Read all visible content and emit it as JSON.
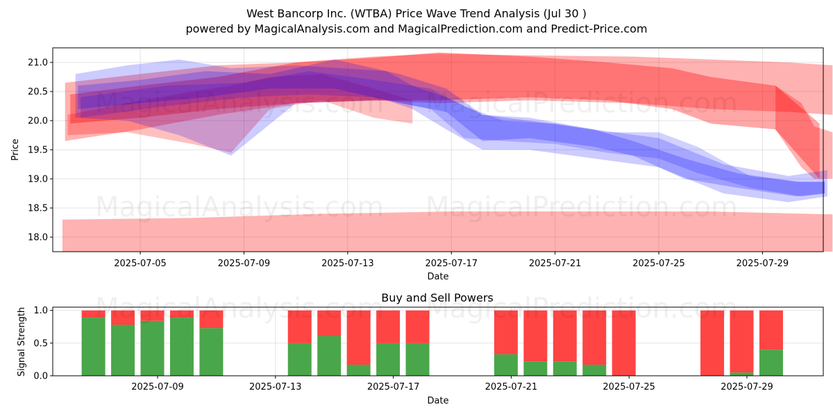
{
  "figure": {
    "title_line1": "West Bancorp Inc. (WTBA) Price Wave Trend Analysis (Jul 30 )",
    "title_line2": "powered by MagicalAnalysis.com and MagicalPrediction.com and Predict-Price.com",
    "watermark_1": "MagicalAnalysis.com",
    "watermark_2": "MagicalPrediction.com"
  },
  "colors": {
    "red_band": "#ff0000",
    "blue_band": "#0000ff",
    "buy": "#4aa64a",
    "sell": "#ff4444",
    "grid": "#b0b0b0"
  },
  "chart_data": [
    {
      "type": "area",
      "title": "",
      "xlabel": "Date",
      "ylabel": "Price",
      "x_start": "2025-07-02",
      "x_end": "2025-07-31",
      "ylim": [
        17.75,
        21.25
      ],
      "yticks": [
        18.0,
        18.5,
        19.0,
        19.5,
        20.0,
        20.5,
        21.0
      ],
      "ytick_labels": [
        "18.0",
        "18.5",
        "19.0",
        "19.5",
        "20.0",
        "20.5",
        "21.0"
      ],
      "xticks": [
        "2025-07-05",
        "2025-07-09",
        "2025-07-13",
        "2025-07-17",
        "2025-07-21",
        "2025-07-25",
        "2025-07-29"
      ],
      "series": [
        {
          "name": "red-wave-upper",
          "color": "red",
          "opacity": 0.3,
          "x_days": [
            0.1,
            3,
            6,
            9,
            12,
            14.5,
            18,
            22,
            25,
            28,
            29.7
          ],
          "upper": [
            20.65,
            20.8,
            20.95,
            21.0,
            21.1,
            21.15,
            21.12,
            21.1,
            21.05,
            21.0,
            20.95
          ],
          "lower": [
            19.65,
            19.85,
            20.1,
            20.3,
            20.35,
            20.3,
            20.35,
            20.3,
            20.2,
            20.15,
            20.1
          ]
        },
        {
          "name": "red-wave-main",
          "color": "red",
          "opacity": 0.35,
          "x_days": [
            0.3,
            3,
            6,
            9,
            12,
            14.5,
            18,
            21,
            23.5,
            25,
            27.5,
            29.2
          ],
          "upper": [
            20.45,
            20.6,
            20.75,
            21.0,
            21.08,
            21.17,
            21.1,
            21.0,
            20.9,
            20.75,
            20.6,
            19.95
          ],
          "lower": [
            19.95,
            20.05,
            20.2,
            20.3,
            20.35,
            20.35,
            20.4,
            20.35,
            20.2,
            19.95,
            19.85,
            19.0
          ]
        },
        {
          "name": "red-wave-tail",
          "color": "red",
          "opacity": 0.3,
          "x_days": [
            27.5,
            28.5,
            29.0,
            29.7
          ],
          "upper": [
            20.6,
            20.3,
            19.9,
            19.8
          ],
          "lower": [
            19.85,
            19.2,
            19.0,
            19.0
          ]
        },
        {
          "name": "red-wave-short",
          "color": "red",
          "opacity": 0.25,
          "x_days": [
            0.2,
            2.5,
            5,
            6.5,
            8,
            10,
            12,
            13.5
          ],
          "upper": [
            20.1,
            20.3,
            20.5,
            20.6,
            20.75,
            20.8,
            20.55,
            20.35
          ],
          "lower": [
            19.75,
            19.8,
            19.6,
            19.45,
            20.2,
            20.35,
            20.05,
            19.95
          ]
        },
        {
          "name": "red-support",
          "color": "red",
          "opacity": 0.3,
          "x_days": [
            0.0,
            5,
            10,
            15,
            20,
            25,
            29.7
          ],
          "upper": [
            18.3,
            18.33,
            18.4,
            18.44,
            18.44,
            18.44,
            18.39
          ],
          "lower": [
            17.75,
            17.75,
            17.75,
            17.75,
            17.75,
            17.75,
            17.75
          ]
        },
        {
          "name": "blue-wave-1",
          "color": "blue",
          "opacity": 0.2,
          "x_days": [
            0.5,
            2.5,
            4.5,
            6.5,
            9,
            12.5,
            13.5,
            14.8,
            16.2,
            18,
            20.5,
            23,
            25.5,
            28,
            29.5
          ],
          "upper": [
            20.8,
            20.95,
            21.05,
            20.9,
            20.95,
            20.85,
            20.6,
            20.4,
            20.1,
            20.05,
            19.85,
            19.7,
            19.25,
            19.05,
            19.15
          ],
          "lower": [
            20.05,
            20.0,
            19.75,
            19.4,
            20.3,
            20.35,
            20.2,
            19.85,
            19.5,
            19.5,
            19.35,
            19.2,
            18.75,
            18.6,
            18.7
          ]
        },
        {
          "name": "blue-wave-2",
          "color": "blue",
          "opacity": 0.22,
          "x_days": [
            0.6,
            3,
            5.5,
            8,
            10.5,
            13,
            14.8,
            16.2,
            18,
            20.5,
            22,
            24,
            26,
            28.3,
            29.4
          ],
          "upper": [
            20.6,
            20.7,
            20.85,
            20.8,
            21.05,
            20.8,
            20.55,
            20.1,
            20.0,
            19.85,
            19.65,
            19.35,
            19.1,
            18.95,
            18.95
          ],
          "lower": [
            20.2,
            20.3,
            20.4,
            20.55,
            20.55,
            20.3,
            20.15,
            19.65,
            19.7,
            19.55,
            19.4,
            19.0,
            18.85,
            18.7,
            18.75
          ]
        },
        {
          "name": "blue-wave-3",
          "color": "blue",
          "opacity": 0.18,
          "x_days": [
            0.7,
            4,
            7,
            9.5,
            12,
            14.2,
            15.5,
            17,
            19,
            21,
            23,
            24.5,
            26.5,
            28.5,
            29.4
          ],
          "upper": [
            20.4,
            20.6,
            20.65,
            20.85,
            20.7,
            20.55,
            20.25,
            20.0,
            19.95,
            19.8,
            19.8,
            19.55,
            19.05,
            18.95,
            18.95
          ],
          "lower": [
            20.05,
            20.25,
            20.4,
            20.45,
            20.4,
            20.2,
            19.7,
            19.65,
            19.6,
            19.45,
            19.35,
            19.1,
            18.85,
            18.7,
            18.75
          ]
        }
      ]
    },
    {
      "type": "bar",
      "title": "Buy and Sell Powers",
      "xlabel": "Date",
      "ylabel": "Signal Strength",
      "ylim": [
        0,
        1.05
      ],
      "yticks": [
        0.0,
        0.5,
        1.0
      ],
      "ytick_labels": [
        "0.0",
        "0.5",
        "1.0"
      ],
      "xticks": [
        "2025-07-09",
        "2025-07-13",
        "2025-07-17",
        "2025-07-21",
        "2025-07-25",
        "2025-07-29"
      ],
      "x_start": "2025-07-05.35",
      "categories": [
        "2025-07-07",
        "2025-07-08",
        "2025-07-09",
        "2025-07-10",
        "2025-07-11",
        "2025-07-14",
        "2025-07-15",
        "2025-07-16",
        "2025-07-17",
        "2025-07-18",
        "2025-07-21",
        "2025-07-22",
        "2025-07-23",
        "2025-07-24",
        "2025-07-25",
        "2025-07-28",
        "2025-07-29",
        "2025-07-30"
      ],
      "series": [
        {
          "name": "Buy",
          "values": [
            0.89,
            0.78,
            0.84,
            0.89,
            0.73,
            0.5,
            0.61,
            0.17,
            0.5,
            0.5,
            0.33,
            0.22,
            0.22,
            0.17,
            0.0,
            0.0,
            0.05,
            0.4
          ]
        },
        {
          "name": "Sell",
          "values": [
            0.11,
            0.22,
            0.16,
            0.11,
            0.27,
            0.5,
            0.39,
            0.83,
            0.5,
            0.5,
            0.67,
            0.78,
            0.78,
            0.83,
            1.0,
            1.0,
            0.95,
            0.6
          ]
        }
      ]
    }
  ]
}
